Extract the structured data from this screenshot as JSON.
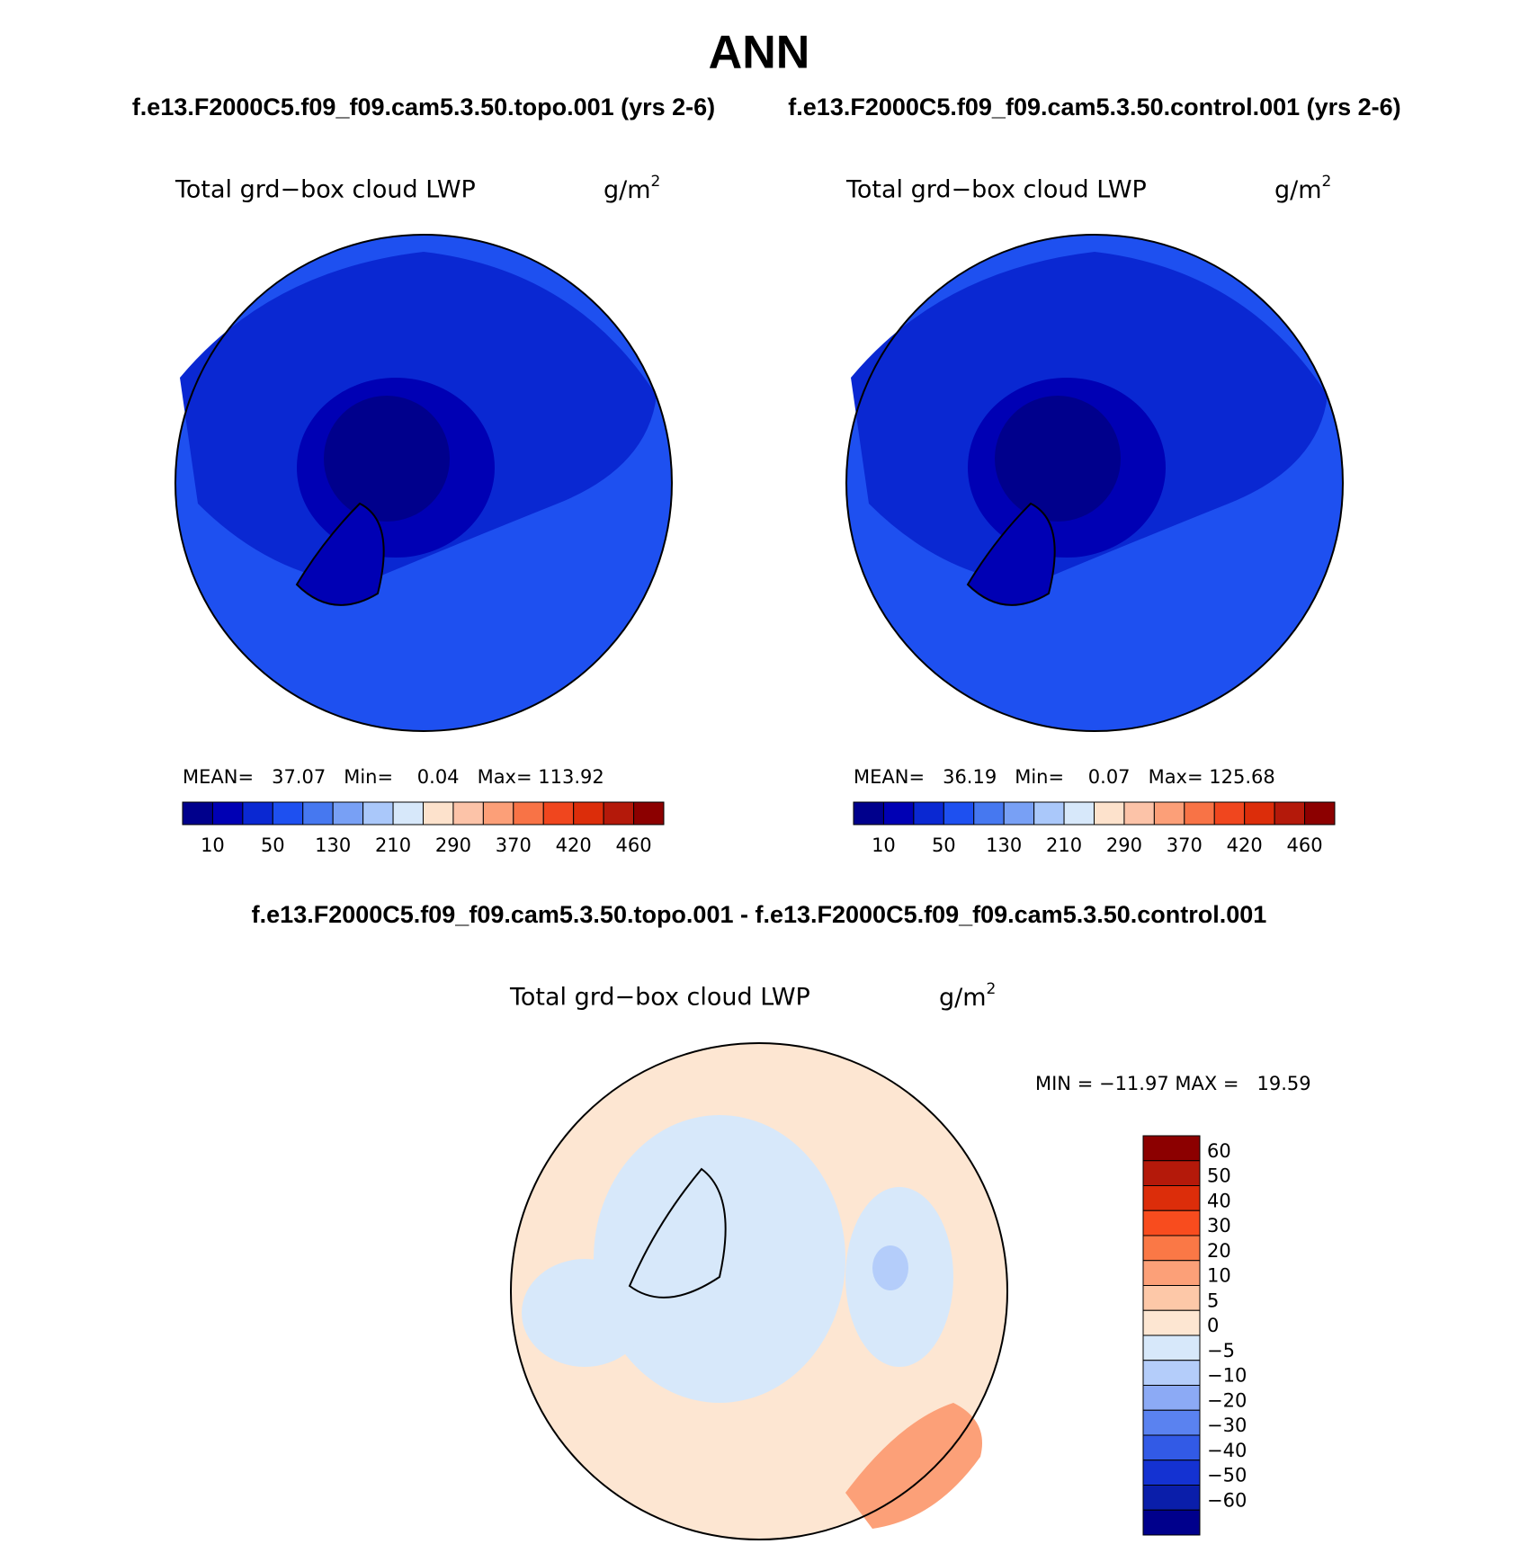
{
  "title": "ANN",
  "subtitle_left": "f.e13.F2000C5.f09_f09.cam5.3.50.topo.001 (yrs 2-6)",
  "subtitle_right": "f.e13.F2000C5.f09_f09.cam5.3.50.control.001 (yrs 2-6)",
  "panels": [
    {
      "field": "Total grd−box cloud LWP",
      "units": {
        "base": "g/m",
        "exponent": "2"
      },
      "stats": "MEAN=   37.07   Min=    0.04   Max= 113.92"
    },
    {
      "field": "Total grd−box cloud LWP",
      "units": {
        "base": "g/m",
        "exponent": "2"
      },
      "stats": "MEAN=   36.19   Min=    0.07   Max= 125.68"
    }
  ],
  "colorbar": {
    "labels": [
      "10",
      "50",
      "130",
      "210",
      "290",
      "370",
      "420",
      "460"
    ],
    "colors": [
      "#00008c",
      "#0000b4",
      "#0a28d2",
      "#1e50f0",
      "#4678f0",
      "#78a0f5",
      "#aac8fa",
      "#d7e8fa",
      "#fde2cc",
      "#fcc3a8",
      "#fc9f78",
      "#f87346",
      "#f0461e",
      "#dc2d0a",
      "#b4190a",
      "#8c0000"
    ]
  },
  "difference": {
    "title": "f.e13.F2000C5.f09_f09.cam5.3.50.topo.001 - f.e13.F2000C5.f09_f09.cam5.3.50.control.001",
    "field": "Total grd−box cloud LWP",
    "units": {
      "base": "g/m",
      "exponent": "2"
    },
    "stats": "MIN = −11.97 MAX =   19.59",
    "colorbar": {
      "labels": [
        "60",
        "50",
        "40",
        "30",
        "20",
        "10",
        "5",
        "0",
        "−5",
        "−10",
        "−20",
        "−30",
        "−40",
        "−50",
        "−60"
      ],
      "colors": [
        "#8c0000",
        "#b4190a",
        "#dc2d0a",
        "#f84c1e",
        "#fa7846",
        "#fca078",
        "#fdc8a8",
        "#fde6d2",
        "#d7e8fa",
        "#b4cdfa",
        "#8caaf5",
        "#5a82f0",
        "#325ae6",
        "#1432d2",
        "#0a1eaa",
        "#00008c"
      ]
    }
  }
}
